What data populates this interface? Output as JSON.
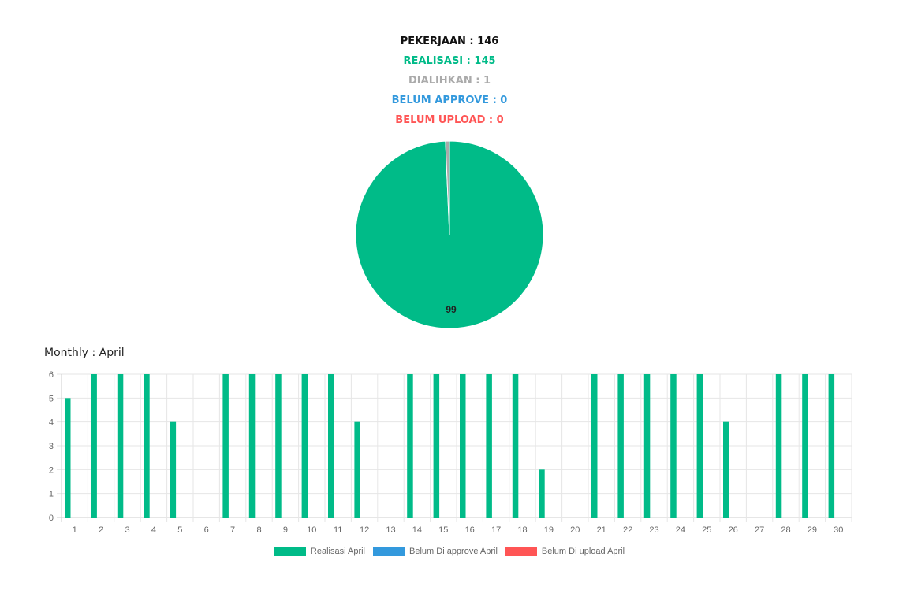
{
  "summary": {
    "pekerjaan": "PEKERJAAN : 146",
    "realisasi": "REALISASI : 145",
    "dialihkan": "DIALIHKAN : 1",
    "belum_approve": "BELUM APPROVE : 0",
    "belum_upload": "BELUM UPLOAD : 0"
  },
  "colors": {
    "pekerjaan": "#111111",
    "realisasi": "#00bb88",
    "dialihkan": "#aaaaaa",
    "belum_approve": "#3399dd",
    "belum_upload": "#ff5555",
    "grid": "#e6e6e6",
    "tick": "#666666"
  },
  "monthly_title": "Monthly : April",
  "chart_data": [
    {
      "type": "pie",
      "slices": [
        {
          "category": "realisasi",
          "value": 145,
          "label": "99"
        },
        {
          "category": "dialihkan",
          "value": 1,
          "label": ""
        }
      ]
    },
    {
      "type": "bar",
      "categories": [
        "1",
        "2",
        "3",
        "4",
        "5",
        "6",
        "7",
        "8",
        "9",
        "10",
        "11",
        "12",
        "13",
        "14",
        "15",
        "16",
        "17",
        "18",
        "19",
        "20",
        "21",
        "22",
        "23",
        "24",
        "25",
        "26",
        "27",
        "28",
        "29",
        "30"
      ],
      "series": [
        {
          "name": "Realisasi April",
          "color": "#00bb88",
          "values": [
            5,
            6,
            6,
            6,
            4,
            0,
            6,
            6,
            6,
            6,
            6,
            4,
            0,
            6,
            6,
            6,
            6,
            6,
            2,
            0,
            6,
            6,
            6,
            6,
            6,
            4,
            0,
            6,
            6,
            6
          ]
        },
        {
          "name": "Belum Di approve April",
          "color": "#3399dd",
          "values": [
            0,
            0,
            0,
            0,
            0,
            0,
            0,
            0,
            0,
            0,
            0,
            0,
            0,
            0,
            0,
            0,
            0,
            0,
            0,
            0,
            0,
            0,
            0,
            0,
            0,
            0,
            0,
            0,
            0,
            0
          ]
        },
        {
          "name": "Belum Di upload April",
          "color": "#ff5555",
          "values": [
            0,
            0,
            0,
            0,
            0,
            0,
            0,
            0,
            0,
            0,
            0,
            0,
            0,
            0,
            0,
            0,
            0,
            0,
            0,
            0,
            0,
            0,
            0,
            0,
            0,
            0,
            0,
            0,
            0,
            0
          ]
        }
      ],
      "ylim": [
        0,
        6
      ],
      "yticks": [
        "0",
        "1",
        "2",
        "3",
        "4",
        "5",
        "6"
      ],
      "grid": true,
      "legend_position": "bottom"
    }
  ]
}
